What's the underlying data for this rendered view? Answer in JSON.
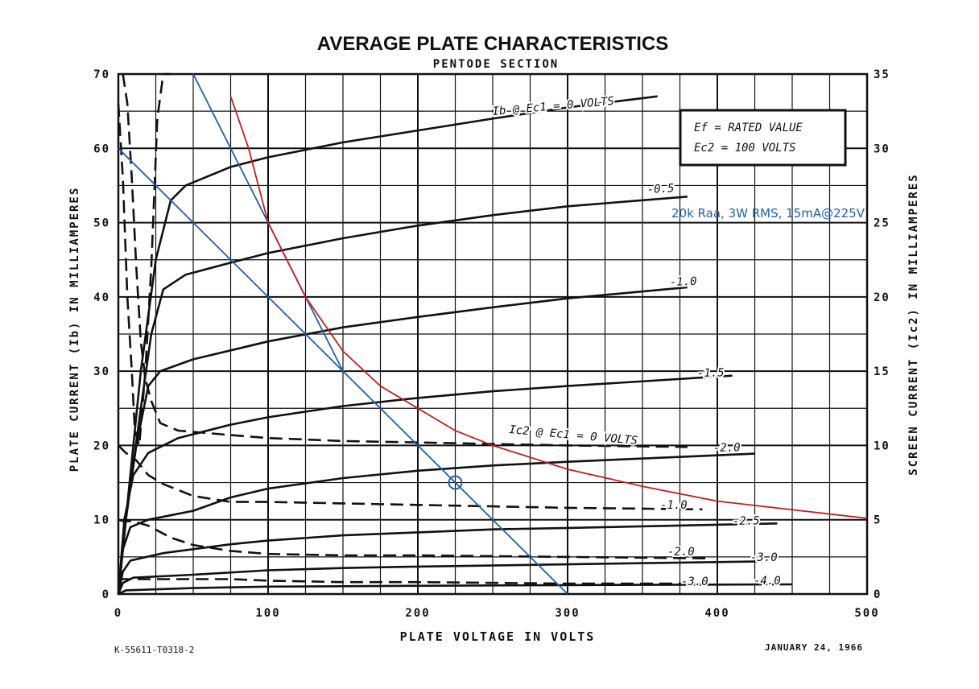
{
  "chart_data": {
    "type": "line",
    "title": "AVERAGE PLATE CHARACTERISTICS",
    "subtitle": "PENTODE SECTION",
    "xlabel": "PLATE VOLTAGE IN VOLTS",
    "ylabel": "PLATE CURRENT (Ib) IN MILLIAMPERES",
    "y2label": "SCREEN CURRENT (Ic2) IN MILLIAMPERES",
    "xlim": [
      0,
      500
    ],
    "ylim": [
      0,
      70
    ],
    "y2lim": [
      0,
      35
    ],
    "x_ticks": [
      "0",
      "100",
      "200",
      "300",
      "400",
      "500"
    ],
    "y_ticks": [
      "0",
      "10",
      "20",
      "30",
      "40",
      "50",
      "60",
      "70"
    ],
    "y2_ticks": [
      "0",
      "5",
      "10",
      "15",
      "20",
      "25",
      "30",
      "35"
    ],
    "grid": true,
    "conditions": [
      "Ef = RATED VALUE",
      "Ec2 = 100 VOLTS"
    ],
    "overlay_note": "20k Raa, 3W RMS, 15mA@225V",
    "footer_left": "K-55611-T0318-2",
    "footer_right": "JANUARY 24, 1966",
    "plate_curves": [
      {
        "label": "Ib @ Ec1 = 0 VOLTS",
        "ec1": 0,
        "points": [
          [
            0,
            0
          ],
          [
            5,
            10
          ],
          [
            15,
            30
          ],
          [
            25,
            45
          ],
          [
            35,
            53
          ],
          [
            45,
            55
          ],
          [
            75,
            57.5
          ],
          [
            100,
            58.8
          ],
          [
            150,
            60.8
          ],
          [
            200,
            62.4
          ],
          [
            250,
            64
          ],
          [
            300,
            65.5
          ],
          [
            360,
            67
          ]
        ]
      },
      {
        "label": "-0.5",
        "ec1": -0.5,
        "points": [
          [
            0,
            0
          ],
          [
            5,
            10
          ],
          [
            15,
            25
          ],
          [
            22,
            35
          ],
          [
            30,
            41
          ],
          [
            45,
            43
          ],
          [
            75,
            44.6
          ],
          [
            100,
            45.9
          ],
          [
            150,
            47.9
          ],
          [
            200,
            49.6
          ],
          [
            250,
            51
          ],
          [
            300,
            52.2
          ],
          [
            380,
            53.5
          ]
        ]
      },
      {
        "label": "-1.0",
        "ec1": -1.0,
        "points": [
          [
            0,
            0
          ],
          [
            5,
            10
          ],
          [
            12,
            20
          ],
          [
            20,
            28
          ],
          [
            28,
            30
          ],
          [
            50,
            31.6
          ],
          [
            75,
            32.8
          ],
          [
            100,
            34
          ],
          [
            150,
            35.9
          ],
          [
            200,
            37.3
          ],
          [
            250,
            38.6
          ],
          [
            300,
            39.8
          ],
          [
            380,
            41.3
          ]
        ]
      },
      {
        "label": "-1.5",
        "ec1": -1.5,
        "points": [
          [
            0,
            0
          ],
          [
            4,
            10
          ],
          [
            10,
            16
          ],
          [
            20,
            19
          ],
          [
            40,
            21
          ],
          [
            75,
            22.8
          ],
          [
            100,
            23.8
          ],
          [
            150,
            25.3
          ],
          [
            200,
            26.4
          ],
          [
            250,
            27.3
          ],
          [
            300,
            28
          ],
          [
            410,
            29.4
          ]
        ]
      },
      {
        "label": "-2.0",
        "ec1": -2.0,
        "points": [
          [
            0,
            0
          ],
          [
            3,
            6
          ],
          [
            8,
            9
          ],
          [
            20,
            10
          ],
          [
            50,
            11.2
          ],
          [
            75,
            13
          ],
          [
            100,
            14.2
          ],
          [
            150,
            15.6
          ],
          [
            200,
            16.6
          ],
          [
            250,
            17.3
          ],
          [
            300,
            17.8
          ],
          [
            425,
            18.9
          ]
        ]
      },
      {
        "label": "-2.5",
        "ec1": -2.5,
        "points": [
          [
            0,
            0
          ],
          [
            3,
            3
          ],
          [
            8,
            4.5
          ],
          [
            30,
            5.5
          ],
          [
            75,
            6.7
          ],
          [
            100,
            7.2
          ],
          [
            150,
            7.9
          ],
          [
            200,
            8.3
          ],
          [
            250,
            8.7
          ],
          [
            300,
            8.9
          ],
          [
            440,
            9.5
          ]
        ]
      },
      {
        "label": "-3.0",
        "ec1": -3.0,
        "points": [
          [
            0,
            0
          ],
          [
            3,
            1.5
          ],
          [
            10,
            2.2
          ],
          [
            50,
            2.6
          ],
          [
            100,
            3.2
          ],
          [
            150,
            3.5
          ],
          [
            200,
            3.7
          ],
          [
            300,
            4
          ],
          [
            430,
            4.4
          ]
        ]
      },
      {
        "label": "-4.0",
        "ec1": -4.0,
        "points": [
          [
            0,
            0
          ],
          [
            5,
            0.5
          ],
          [
            50,
            0.8
          ],
          [
            100,
            1
          ],
          [
            200,
            1.1
          ],
          [
            300,
            1.2
          ],
          [
            450,
            1.3
          ]
        ]
      }
    ],
    "screen_curves": [
      {
        "label": "Ic2 @ Ec1 = 0 VOLTS",
        "ec1": 0,
        "points": [
          [
            0,
            33
          ],
          [
            3,
            28
          ],
          [
            6,
            20
          ],
          [
            9,
            15
          ],
          [
            11,
            11
          ],
          [
            14,
            10
          ],
          [
            18,
            15
          ],
          [
            22,
            22
          ],
          [
            26,
            32
          ],
          [
            30,
            35
          ],
          [
            35,
            35
          ]
        ]
      },
      {
        "label": "Ic2 @ Ec1 = 0 VOLTS (tail)",
        "ec1": 0,
        "points": [
          [
            3,
            35
          ],
          [
            6,
            33
          ],
          [
            9,
            28
          ],
          [
            12,
            22
          ],
          [
            15,
            17
          ],
          [
            18,
            14.5
          ],
          [
            22,
            13
          ],
          [
            28,
            11.5
          ],
          [
            40,
            11
          ],
          [
            75,
            10.7
          ],
          [
            100,
            10.5
          ],
          [
            150,
            10.3
          ],
          [
            200,
            10.2
          ],
          [
            250,
            10.1
          ],
          [
            300,
            10
          ],
          [
            380,
            9.9
          ]
        ]
      },
      {
        "label": "-1.0",
        "ec1": -1.0,
        "points": [
          [
            0,
            10
          ],
          [
            5,
            9.5
          ],
          [
            12,
            9
          ],
          [
            20,
            8
          ],
          [
            30,
            7.4
          ],
          [
            50,
            6.6
          ],
          [
            75,
            6.2
          ],
          [
            100,
            6.2
          ],
          [
            150,
            6.1
          ],
          [
            200,
            6
          ],
          [
            250,
            5.9
          ],
          [
            300,
            5.8
          ],
          [
            390,
            5.7
          ]
        ]
      },
      {
        "label": "-2.0",
        "ec1": -2.0,
        "points": [
          [
            0,
            5
          ],
          [
            4,
            4.9
          ],
          [
            10,
            4.9
          ],
          [
            20,
            4.6
          ],
          [
            35,
            3.8
          ],
          [
            50,
            3.3
          ],
          [
            75,
            2.9
          ],
          [
            100,
            2.7
          ],
          [
            150,
            2.6
          ],
          [
            200,
            2.6
          ],
          [
            300,
            2.5
          ],
          [
            395,
            2.4
          ]
        ]
      },
      {
        "label": "-3.0",
        "ec1": -3.0,
        "points": [
          [
            0,
            1
          ],
          [
            5,
            1
          ],
          [
            15,
            1
          ],
          [
            50,
            1
          ],
          [
            75,
            1
          ],
          [
            100,
            0.9
          ],
          [
            150,
            0.8
          ],
          [
            200,
            0.8
          ],
          [
            300,
            0.7
          ],
          [
            390,
            0.7
          ]
        ]
      }
    ],
    "load_lines": [
      {
        "color": "#1f5fa8",
        "points": [
          [
            0,
            60
          ],
          [
            300,
            0
          ]
        ]
      },
      {
        "color": "#1f5fa8",
        "points": [
          [
            50,
            70
          ],
          [
            150,
            30
          ]
        ]
      }
    ],
    "power_curve": {
      "color": "#c0201f",
      "points": [
        [
          75,
          67
        ],
        [
          87,
          60
        ],
        [
          100,
          50
        ],
        [
          125,
          40
        ],
        [
          150,
          32.7
        ],
        [
          175,
          28
        ],
        [
          200,
          25
        ],
        [
          225,
          22
        ],
        [
          250,
          20
        ],
        [
          300,
          16.8
        ],
        [
          350,
          14.5
        ],
        [
          400,
          12.5
        ],
        [
          500,
          10.2
        ]
      ]
    },
    "operating_point": {
      "x": 225,
      "y": 15
    }
  }
}
